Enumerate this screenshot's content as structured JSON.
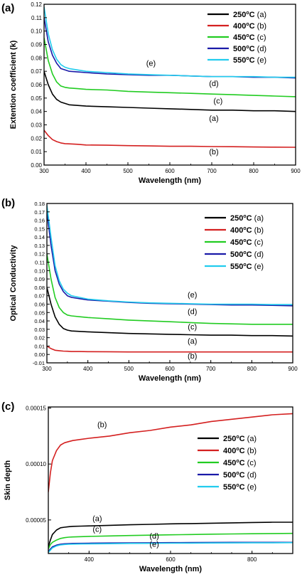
{
  "chart_data": [
    {
      "panel_label": "(a)",
      "type": "line",
      "xlabel": "Wavelength (nm)",
      "ylabel": "Extention coefficient  (k)",
      "xlim": [
        300,
        900
      ],
      "ylim": [
        0.0,
        0.12
      ],
      "x_ticks": [
        "300",
        "400",
        "500",
        "600",
        "700",
        "800",
        "900"
      ],
      "y_ticks": [
        "0.00",
        "0.01",
        "0.02",
        "0.03",
        "0.04",
        "0.05",
        "0.06",
        "0.07",
        "0.08",
        "0.09",
        "0.10",
        "0.11",
        "0.12"
      ],
      "legend_position": "top-right",
      "x": [
        300,
        310,
        320,
        330,
        340,
        350,
        360,
        380,
        400,
        450,
        500,
        550,
        600,
        650,
        700,
        750,
        800,
        850,
        900
      ],
      "series": [
        {
          "name": "250°C (a)",
          "color": "#000000",
          "values": [
            0.07,
            0.06,
            0.053,
            0.049,
            0.047,
            0.046,
            0.045,
            0.0445,
            0.044,
            0.0435,
            0.043,
            0.0425,
            0.042,
            0.0415,
            0.041,
            0.041,
            0.0405,
            0.0405,
            0.04
          ]
        },
        {
          "name": "400°C (b)",
          "color": "#d42020",
          "values": [
            0.026,
            0.022,
            0.019,
            0.0175,
            0.0165,
            0.016,
            0.0158,
            0.0155,
            0.015,
            0.0148,
            0.0145,
            0.0143,
            0.014,
            0.014,
            0.0138,
            0.0137,
            0.0135,
            0.0134,
            0.0133
          ]
        },
        {
          "name": "450°C (c)",
          "color": "#22cc22",
          "values": [
            0.095,
            0.078,
            0.068,
            0.062,
            0.059,
            0.058,
            0.0575,
            0.057,
            0.0565,
            0.056,
            0.055,
            0.0545,
            0.054,
            0.0535,
            0.053,
            0.0525,
            0.052,
            0.0515,
            0.051
          ]
        },
        {
          "name": "500°C (d)",
          "color": "#1a1aa8",
          "values": [
            0.11,
            0.092,
            0.082,
            0.076,
            0.072,
            0.071,
            0.07,
            0.0695,
            0.069,
            0.068,
            0.0675,
            0.067,
            0.067,
            0.0665,
            0.066,
            0.066,
            0.0655,
            0.0655,
            0.065
          ]
        },
        {
          "name": "550°C (e)",
          "color": "#22ccee",
          "values": [
            0.118,
            0.098,
            0.086,
            0.079,
            0.075,
            0.073,
            0.072,
            0.071,
            0.07,
            0.069,
            0.068,
            0.0675,
            0.067,
            0.0665,
            0.066,
            0.066,
            0.066,
            0.0655,
            0.0655
          ]
        }
      ],
      "annotations": [
        {
          "text": "(e)",
          "x": 555,
          "y": 0.074
        },
        {
          "text": "(d)",
          "x": 705,
          "y": 0.059
        },
        {
          "text": "(c)",
          "x": 715,
          "y": 0.046
        },
        {
          "text": "(a)",
          "x": 705,
          "y": 0.033
        },
        {
          "text": "(b)",
          "x": 705,
          "y": 0.008
        }
      ]
    },
    {
      "panel_label": "(b)",
      "type": "line",
      "xlabel": "Wavelength (nm)",
      "ylabel": "Optical Conductivity",
      "xlim": [
        300,
        900
      ],
      "ylim": [
        -0.01,
        0.18
      ],
      "x_ticks": [
        "300",
        "400",
        "500",
        "600",
        "700",
        "800",
        "900"
      ],
      "y_ticks": [
        "-0.01",
        "0.00",
        "0.01",
        "0.02",
        "0.03",
        "0.04",
        "0.05",
        "0.06",
        "0.07",
        "0.08",
        "0.09",
        "0.10",
        "0.11",
        "0.12",
        "0.13",
        "0.14",
        "0.15",
        "0.16",
        "0.17",
        "0.18"
      ],
      "legend_position": "right",
      "x": [
        300,
        310,
        320,
        330,
        340,
        350,
        360,
        380,
        400,
        450,
        500,
        550,
        600,
        650,
        700,
        750,
        800,
        850,
        900
      ],
      "series": [
        {
          "name": "250°C (a)",
          "color": "#000000",
          "values": [
            0.08,
            0.06,
            0.045,
            0.036,
            0.031,
            0.029,
            0.028,
            0.0275,
            0.027,
            0.026,
            0.025,
            0.0245,
            0.024,
            0.0235,
            0.023,
            0.023,
            0.0225,
            0.0225,
            0.022
          ]
        },
        {
          "name": "400°C (b)",
          "color": "#d42020",
          "values": [
            0.01,
            0.007,
            0.005,
            0.0045,
            0.004,
            0.0038,
            0.0035,
            0.0035,
            0.0033,
            0.0032,
            0.003,
            0.003,
            0.003,
            0.003,
            0.003,
            0.003,
            0.003,
            0.003,
            0.003
          ]
        },
        {
          "name": "450°C (c)",
          "color": "#22cc22",
          "values": [
            0.12,
            0.09,
            0.068,
            0.056,
            0.05,
            0.047,
            0.046,
            0.045,
            0.044,
            0.0425,
            0.041,
            0.04,
            0.039,
            0.038,
            0.037,
            0.0365,
            0.036,
            0.036,
            0.036
          ]
        },
        {
          "name": "500°C (d)",
          "color": "#1a1aa8",
          "values": [
            0.17,
            0.13,
            0.1,
            0.084,
            0.075,
            0.07,
            0.068,
            0.0665,
            0.065,
            0.0635,
            0.062,
            0.061,
            0.0605,
            0.06,
            0.0595,
            0.059,
            0.059,
            0.0585,
            0.058
          ]
        },
        {
          "name": "550°C (e)",
          "color": "#22ccee",
          "values": [
            0.178,
            0.14,
            0.106,
            0.088,
            0.078,
            0.073,
            0.07,
            0.068,
            0.066,
            0.064,
            0.0625,
            0.0615,
            0.061,
            0.0605,
            0.06,
            0.06,
            0.06,
            0.0595,
            0.0595
          ]
        }
      ],
      "annotations": [
        {
          "text": "(e)",
          "x": 655,
          "y": 0.068
        },
        {
          "text": "(d)",
          "x": 655,
          "y": 0.048
        },
        {
          "text": "(c)",
          "x": 655,
          "y": 0.03
        },
        {
          "text": "(a)",
          "x": 655,
          "y": 0.013
        },
        {
          "text": "(b)",
          "x": 655,
          "y": -0.005
        }
      ]
    },
    {
      "panel_label": "(c)",
      "type": "line",
      "xlabel": "Wavelength (nm)",
      "ylabel": "Skin depth",
      "xlim": [
        300,
        900
      ],
      "ylim": [
        2e-05,
        0.000151
      ],
      "x_ticks": [
        "400",
        "600",
        "800"
      ],
      "x_tick_values": [
        400,
        600,
        800
      ],
      "y_ticks": [
        "0.00005",
        "0.00010",
        "0.00015"
      ],
      "y_tick_values": [
        5e-05,
        0.0001,
        0.00015
      ],
      "legend_position": "right",
      "x": [
        300,
        305,
        310,
        320,
        330,
        340,
        350,
        360,
        380,
        400,
        450,
        500,
        550,
        600,
        650,
        700,
        750,
        800,
        850,
        900
      ],
      "series": [
        {
          "name": "250°C (a)",
          "color": "#000000",
          "values": [
            2.6e-05,
            3.2e-05,
            3.7e-05,
            4.1e-05,
            4.3e-05,
            4.35e-05,
            4.4e-05,
            4.43e-05,
            4.45e-05,
            4.47e-05,
            4.52e-05,
            4.57e-05,
            4.61e-05,
            4.65e-05,
            4.68e-05,
            4.71e-05,
            4.74e-05,
            4.77e-05,
            4.8e-05,
            4.8e-05
          ]
        },
        {
          "name": "400°C (b)",
          "color": "#d42020",
          "values": [
            7.5e-05,
            9.2e-05,
            0.000103,
            0.000112,
            0.000117,
            0.000119,
            0.00012,
            0.000121,
            0.000122,
            0.000123,
            0.000125,
            0.000128,
            0.00013,
            0.000133,
            0.000135,
            0.000138,
            0.00014,
            0.000142,
            0.000144,
            0.000145
          ]
        },
        {
          "name": "450°C (c)",
          "color": "#22cc22",
          "values": [
            2.4e-05,
            2.8e-05,
            3e-05,
            3.2e-05,
            3.35e-05,
            3.42e-05,
            3.46e-05,
            3.48e-05,
            3.51e-05,
            3.53e-05,
            3.57e-05,
            3.61e-05,
            3.64e-05,
            3.67e-05,
            3.7e-05,
            3.73e-05,
            3.75e-05,
            3.77e-05,
            3.79e-05,
            3.8e-05
          ]
        },
        {
          "name": "500°C (d)",
          "color": "#1a1aa8",
          "values": [
            2.2e-05,
            2.4e-05,
            2.6e-05,
            2.75e-05,
            2.83e-05,
            2.87e-05,
            2.89e-05,
            2.9e-05,
            2.91e-05,
            2.92e-05,
            2.94e-05,
            2.95e-05,
            2.96e-05,
            2.97e-05,
            2.98e-05,
            2.99e-05,
            3e-05,
            3e-05,
            3e-05,
            3e-05
          ]
        },
        {
          "name": "550°C (e)",
          "color": "#22ccee",
          "values": [
            2.1e-05,
            2.3e-05,
            2.5e-05,
            2.68e-05,
            2.77e-05,
            2.81e-05,
            2.83e-05,
            2.84e-05,
            2.85e-05,
            2.86e-05,
            2.88e-05,
            2.9e-05,
            2.91e-05,
            2.92e-05,
            2.93e-05,
            2.94e-05,
            2.95e-05,
            2.96e-05,
            2.96e-05,
            2.97e-05
          ]
        }
      ],
      "annotations": [
        {
          "text": "(b)",
          "x": 432,
          "y": 0.000133
        },
        {
          "text": "(a)",
          "x": 420,
          "y": 4.9e-05
        },
        {
          "text": "(c)",
          "x": 420,
          "y": 3.95e-05
        },
        {
          "text": "(d)",
          "x": 560,
          "y": 3.35e-05
        },
        {
          "text": "(e)",
          "x": 560,
          "y": 2.6e-05
        }
      ]
    }
  ]
}
